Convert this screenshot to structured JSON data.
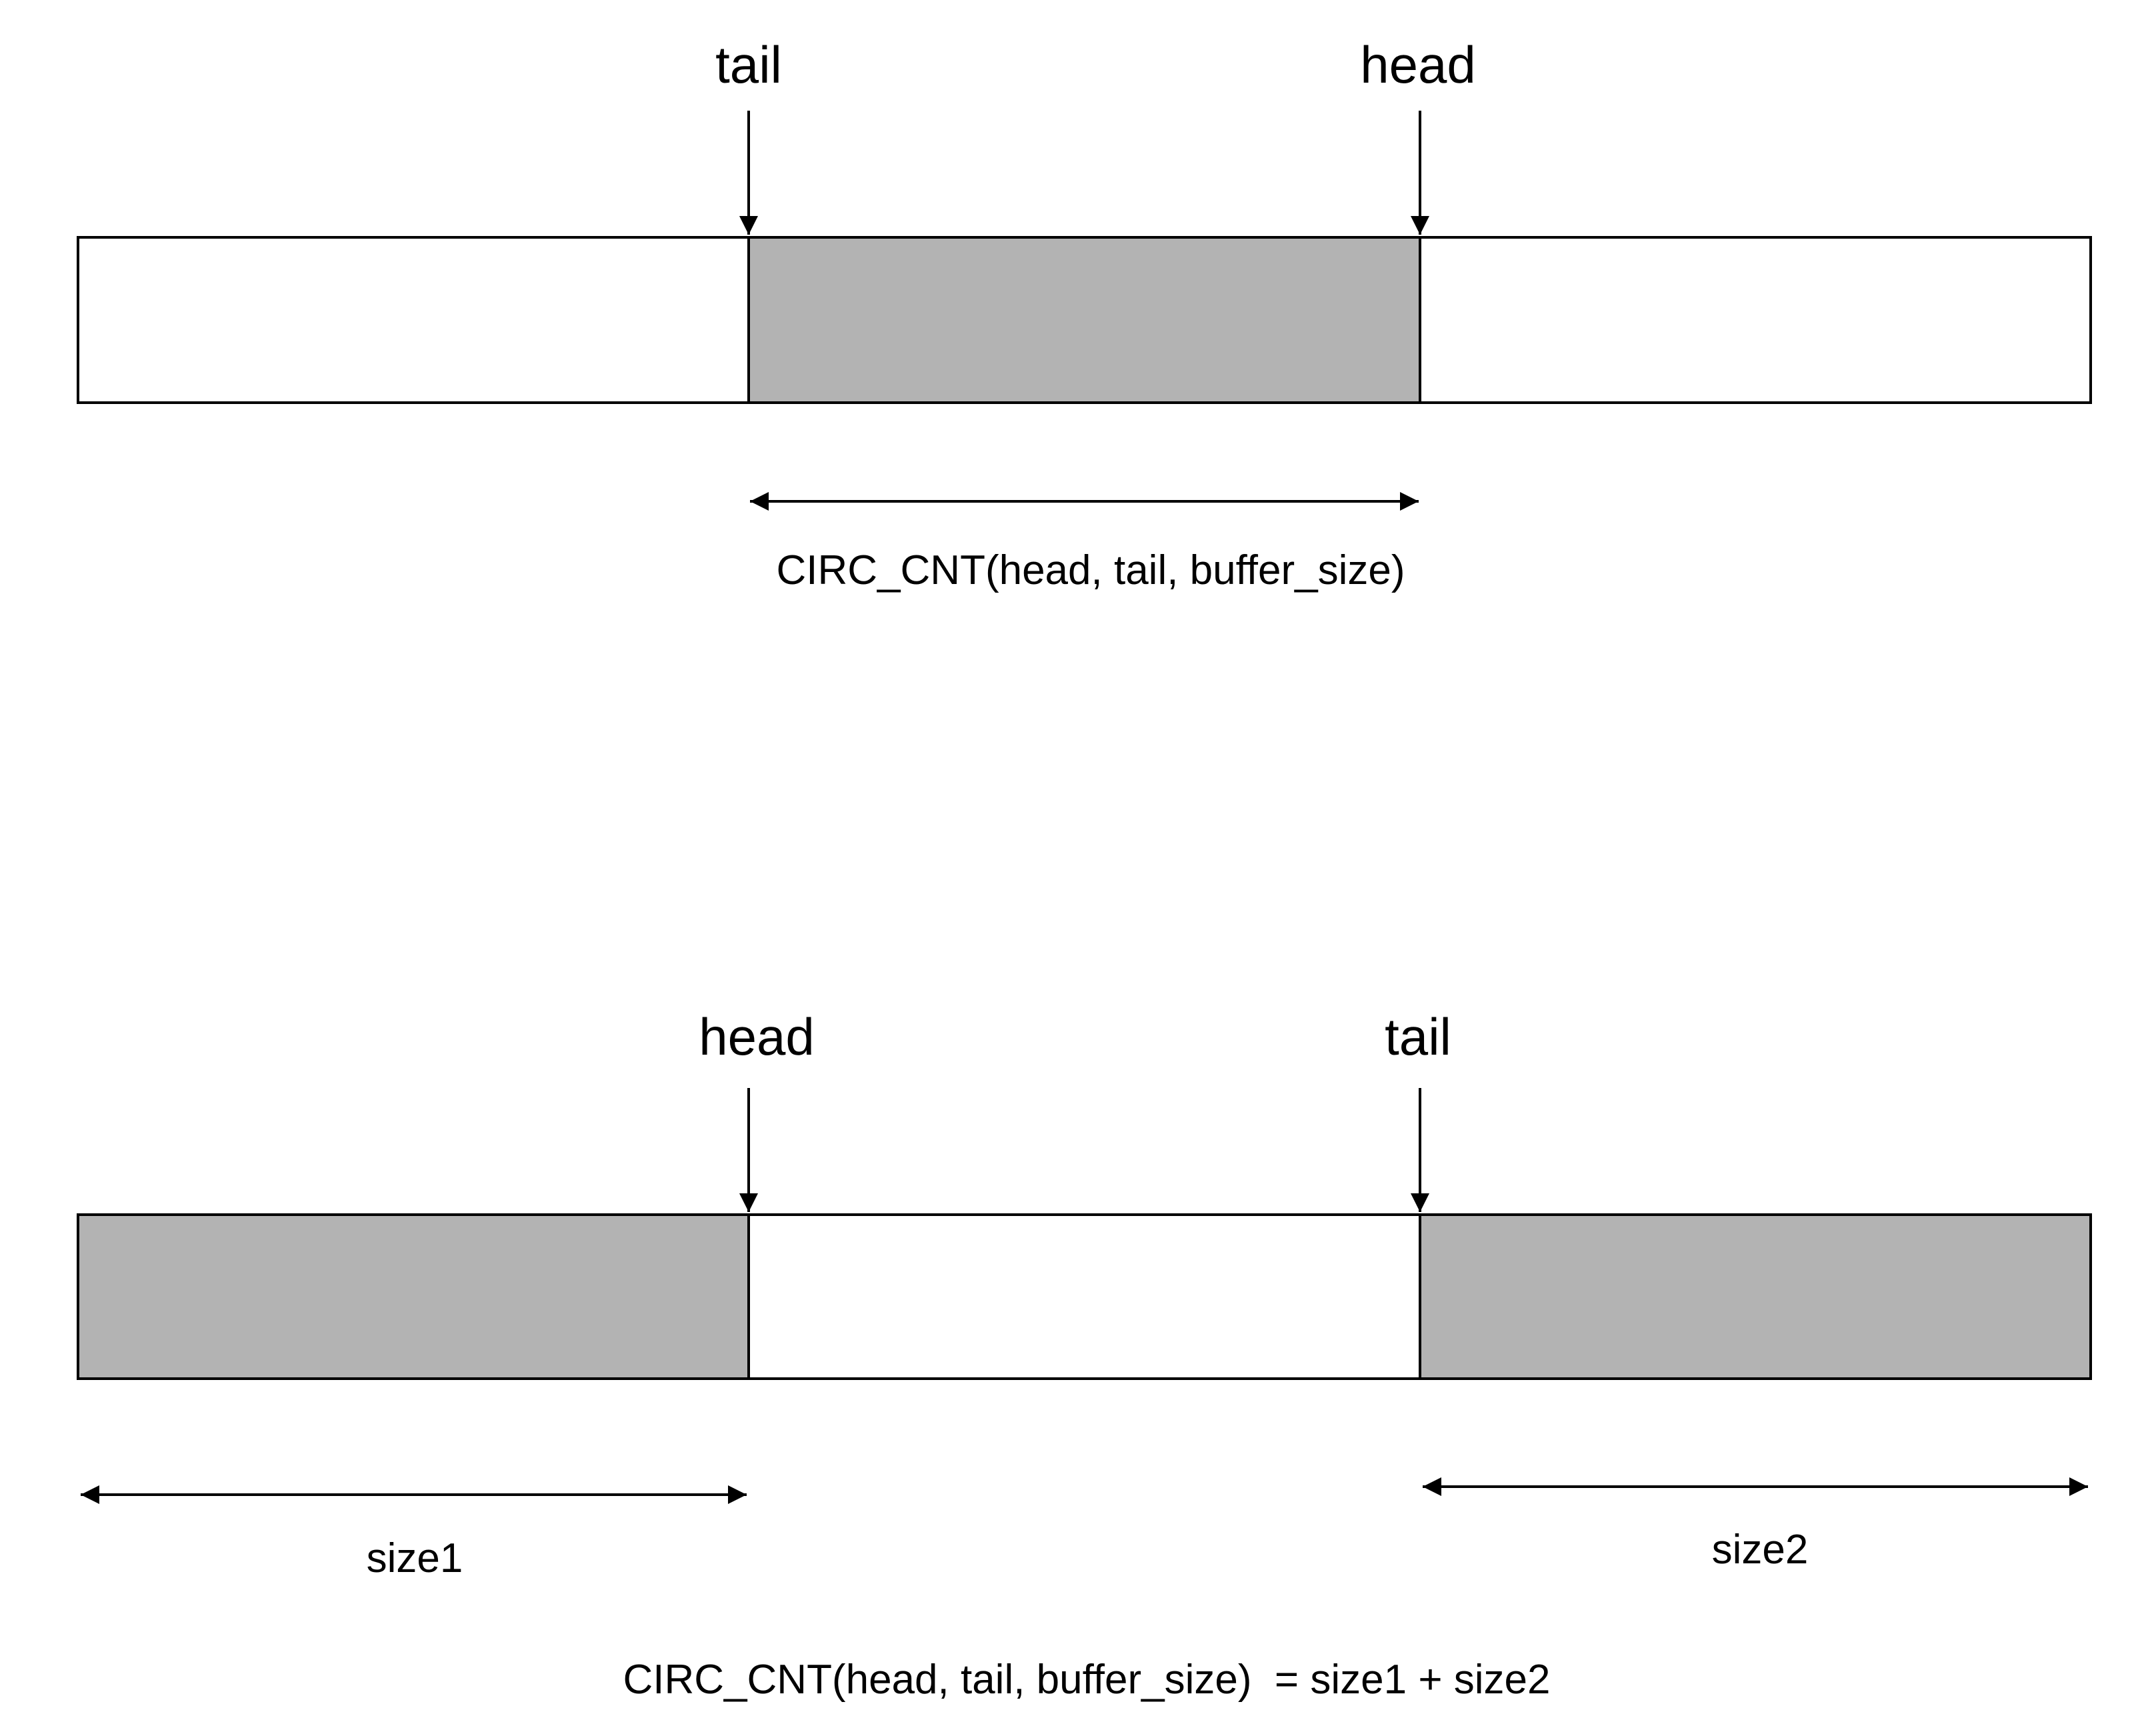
{
  "colors": {
    "filled": "#b3b3b3",
    "empty": "#ffffff",
    "stroke": "#000000"
  },
  "top_buffer": {
    "pointer_left": "tail",
    "pointer_right": "head",
    "segments": [
      "empty",
      "filled",
      "empty"
    ],
    "count_label": "CIRC_CNT(head, tail, buffer_size)"
  },
  "bottom_buffer": {
    "pointer_left": "head",
    "pointer_right": "tail",
    "segments": [
      "filled",
      "empty",
      "filled"
    ],
    "size1_label": "size1",
    "size2_label": "size2",
    "count_label": "CIRC_CNT(head, tail, buffer_size)  = size1 + size2"
  }
}
